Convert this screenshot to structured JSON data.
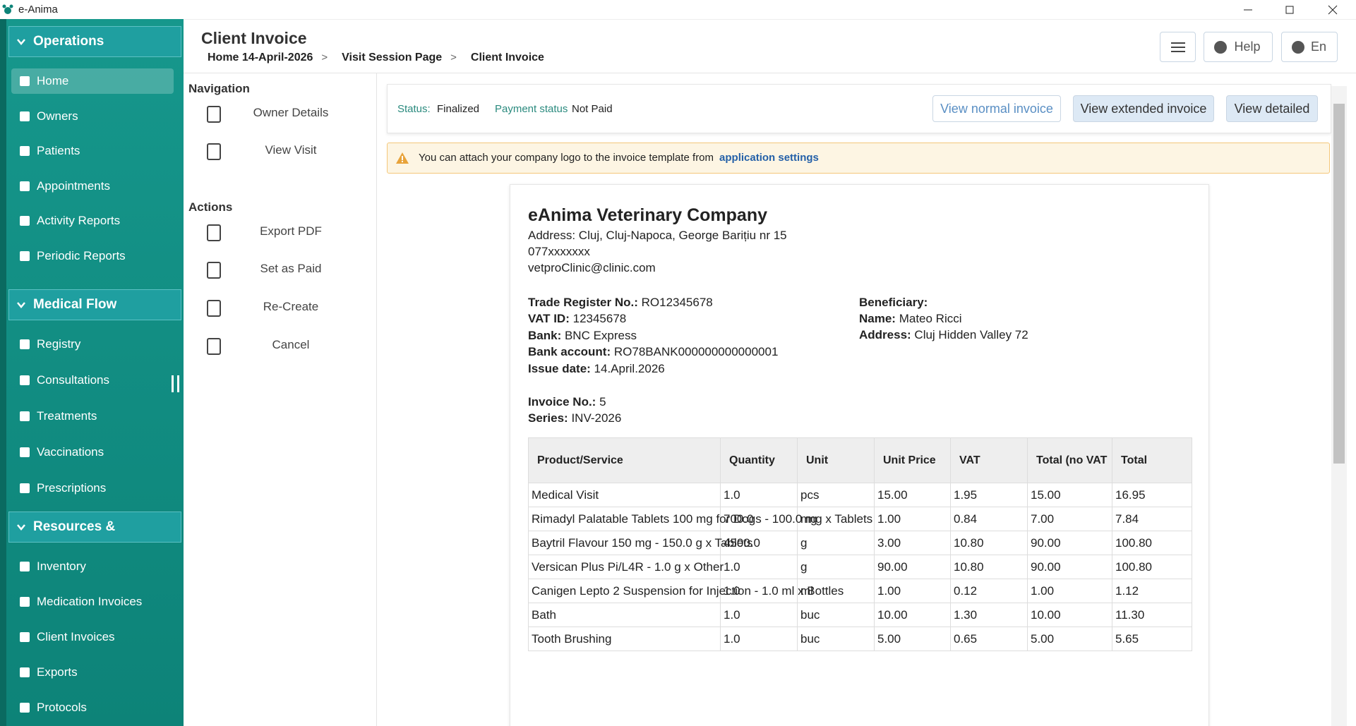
{
  "window": {
    "title": "e-Anima"
  },
  "sidebar": {
    "sections": [
      {
        "title": "Operations",
        "items": [
          "Home",
          "Owners",
          "Patients",
          "Appointments",
          "Activity Reports",
          "Periodic Reports"
        ]
      },
      {
        "title": "Medical Flow",
        "items": [
          "Registry",
          "Consultations",
          "Treatments",
          "Vaccinations",
          "Prescriptions"
        ]
      },
      {
        "title": "Resources & Manageme",
        "items": [
          "Inventory",
          "Medication Invoices",
          "Client Invoices",
          "Exports",
          "Protocols"
        ]
      }
    ]
  },
  "header": {
    "title": "Client Invoice",
    "breadcrumbs": [
      "Home 14-April-2026",
      "Visit Session Page",
      "Client Invoice"
    ],
    "separator": ">",
    "buttons": [
      "Help",
      "En"
    ]
  },
  "side_panel": {
    "navigation": {
      "heading": "Navigation",
      "items": [
        "Owner Details",
        "View Visit"
      ]
    },
    "actions": {
      "heading": "Actions",
      "items": [
        "Export PDF",
        "Set as Paid",
        "Re-Create",
        "Cancel"
      ]
    }
  },
  "status_bar": {
    "status_label": "Status:",
    "status": "Finalized",
    "payment_label": "Payment status",
    "payment": "Not Paid",
    "buttons": [
      "View normal invoice",
      "View extended invoice",
      "View detailed"
    ]
  },
  "alert": {
    "text": "You can attach your company logo to the invoice template from",
    "link": "application settings"
  },
  "invoice": {
    "company": "eAnima Veterinary Company",
    "contact": [
      "Address: Cluj, Cluj-Napoca, George Barițiu nr 15",
      "077xxxxxxx",
      "vetproClinic@clinic.com"
    ],
    "seller": [
      [
        "Trade Register No.:",
        "RO12345678"
      ],
      [
        "VAT ID:",
        "12345678"
      ],
      [
        "Bank:",
        "BNC Express"
      ],
      [
        "Bank account:",
        "RO78BANK000000000000001"
      ],
      [
        "Issue date:",
        "14.April.2026"
      ]
    ],
    "beneficiary": {
      "heading": "Beneficiary:",
      "fields": [
        [
          "Name:",
          "Mateo Ricci"
        ],
        [
          "Address:",
          "Cluj Hidden Valley 72"
        ]
      ]
    },
    "numbering": [
      [
        "Invoice No.:",
        "5"
      ],
      [
        "Series:",
        "INV-2026"
      ]
    ],
    "table": {
      "headers": [
        "Product/Service",
        "Quantity",
        "Unit",
        "Unit Price",
        "VAT",
        "Total (no VAT",
        "Total"
      ],
      "rows": [
        [
          "Medical Visit",
          "1.0",
          "pcs",
          "15.00",
          "1.95",
          "15.00",
          "16.95"
        ],
        [
          "Rimadyl Palatable Tablets 100 mg for Dogs - 100.0 mg x Tablets",
          "700.0",
          "mg",
          "1.00",
          "0.84",
          "7.00",
          "7.84"
        ],
        [
          "Baytril Flavour 150 mg - 150.0 g x Tablets",
          "4500.0",
          "g",
          "3.00",
          "10.80",
          "90.00",
          "100.80"
        ],
        [
          "Versican Plus Pi/L4R - 1.0 g x Other",
          "1.0",
          "g",
          "90.00",
          "10.80",
          "90.00",
          "100.80"
        ],
        [
          "Canigen Lepto 2 Suspension for Injection - 1.0 ml x Bottles",
          "1.0",
          "ml",
          "1.00",
          "0.12",
          "1.00",
          "1.12"
        ],
        [
          "Bath",
          "1.0",
          "buc",
          "10.00",
          "1.30",
          "10.00",
          "11.30"
        ],
        [
          "Tooth Brushing",
          "1.0",
          "buc",
          "5.00",
          "0.65",
          "5.00",
          "5.65"
        ]
      ]
    }
  }
}
